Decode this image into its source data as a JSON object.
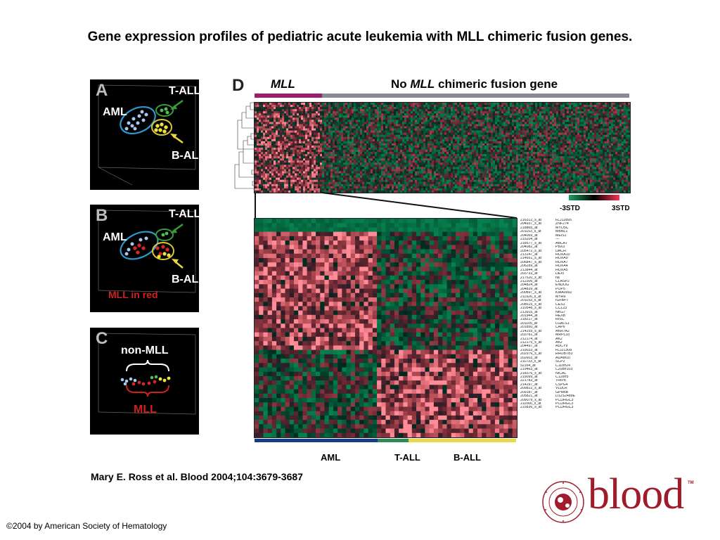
{
  "title": "Gene expression profiles of pediatric acute leukemia with MLL chimeric fusion genes.",
  "panelA": {
    "letter": "A",
    "t_all": "T-ALL",
    "aml": "AML",
    "b_all": "B-ALL"
  },
  "panelB": {
    "letter": "B",
    "t_all": "T-ALL",
    "aml": "AML",
    "b_all": "B-ALL",
    "note": "MLL in red"
  },
  "panelC": {
    "letter": "C",
    "non_mll": "non-MLL",
    "mll": "MLL"
  },
  "panelD": {
    "letter": "D",
    "mll": "MLL",
    "no_mll_prefix": "No ",
    "no_mll_em": "MLL",
    "no_mll_suffix": " chimeric fusion gene",
    "scale_low": "-3STD",
    "scale_high": "3STD",
    "group_aml": "AML",
    "group_tall": "T-ALL",
    "group_ball": "B-ALL"
  },
  "probe_ids": [
    "216312_s_at",
    "204937_s_at",
    "218865_at",
    "201153_s_at",
    "204069_at",
    "215204_at",
    "218577_s_at",
    "204082_at",
    "205472_s_at",
    "213147_at",
    "214651_s_at",
    "206847_s_at",
    "206289_at",
    "213844_at",
    "203733_at",
    "217520_x_at",
    "212306_at",
    "204824_at",
    "204839_at",
    "200897_s_at",
    "211926_s_at",
    "201193_s_at",
    "208615_s_at",
    "210548_s_at",
    "213915_at",
    "201944_at",
    "218217_at",
    "201105_at",
    "201850_at",
    "214259_s_at",
    "203781_at",
    "212174_at",
    "212175_s_at",
    "204497_at",
    "219033_at",
    "202976_s_at",
    "202603_at",
    "211733_x_at",
    "52164_at",
    "219463_at",
    "218376_s_at",
    "219099_at",
    "221783_at",
    "214297_at",
    "209822_s_at",
    "209187_at",
    "205821_at",
    "209079_x_at",
    "211066_x_at",
    "215836_s_at"
  ],
  "gene_names": [
    "FLJ12895",
    "ZNF274",
    "MYO5C",
    "MBNL1",
    "MEIS1",
    "---",
    "ABCA7",
    "PBX3",
    "DACH",
    "HOXA10",
    "HOXA9",
    "HOXA7",
    "HOXA4",
    "HOXA5",
    "DEXI",
    "na",
    "CLASP2",
    "ENDOG",
    "POP5",
    "KIAA0992",
    "MYH9",
    "IGFBP7",
    "CES1",
    "CCL23",
    "NKG7",
    "HEXB",
    "RISC",
    "LGALS1",
    "CAP6",
    "AKR7A2",
    "MRPL33",
    "AK2",
    "AK2",
    "ADCY9",
    "FLJ21308",
    "RHOBTB3",
    "ADAM10",
    "SCP2",
    "C11orf24",
    "C20orf103",
    "NICAL",
    "C12orf5",
    "TRIP8",
    "CSPG4",
    "VLDLR",
    "GPM6B",
    "D12S2489E",
    "PCDHGC3",
    "PCDHGC3",
    "PCDHGC3"
  ],
  "source": "Mary E. Ross et al. Blood 2004;104:3679-3687",
  "copyright": "©2004 by American Society of Hematology",
  "logo": {
    "word": "blood",
    "ring_text": "AMERICAN SOCIETY OF HEMATOLOGY",
    "tm": "TM"
  },
  "colors": {
    "mll_bar": "#9a1e6a",
    "nomll_bar": "#8a8a96",
    "aml_bar": "#1a3a8c",
    "tall_bar": "#2e8b57",
    "ball_bar": "#e8d84a",
    "logo": "#a01c2c"
  }
}
